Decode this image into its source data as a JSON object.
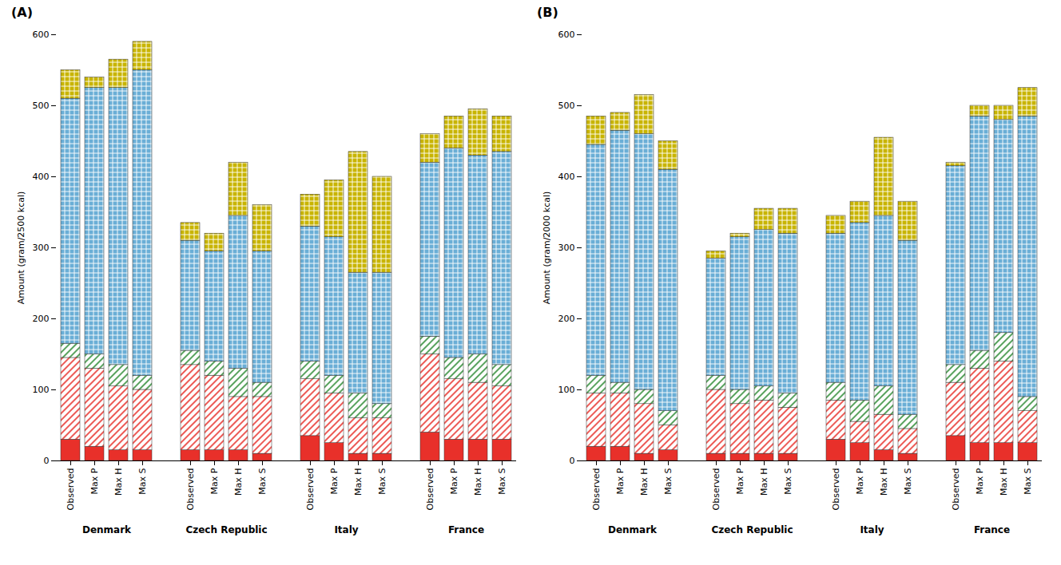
{
  "chart_data": [
    {
      "type": "bar",
      "stacked": true,
      "grid": false,
      "title": "(A)",
      "ylabel": "Amount (gram/2500 kcal)",
      "groups": [
        "Denmark",
        "Czech Republic",
        "Italy",
        "France"
      ],
      "categories": [
        "Observed",
        "Max P",
        "Max H",
        "Max S"
      ],
      "series": [
        {
          "color": "#e8302a",
          "values": [
            [
              30,
              20,
              15,
              15
            ],
            [
              15,
              15,
              15,
              10
            ],
            [
              35,
              25,
              10,
              10
            ],
            [
              40,
              30,
              30,
              30
            ]
          ]
        },
        {
          "color": "#e8302a",
          "values": [
            [
              115,
              110,
              90,
              85
            ],
            [
              120,
              105,
              75,
              80
            ],
            [
              80,
              70,
              50,
              50
            ],
            [
              110,
              85,
              80,
              75
            ]
          ]
        },
        {
          "color": "#2e8b35",
          "values": [
            [
              20,
              20,
              30,
              20
            ],
            [
              20,
              20,
              40,
              20
            ],
            [
              25,
              25,
              35,
              20
            ],
            [
              25,
              30,
              40,
              30
            ]
          ]
        },
        {
          "color": "#6aaed6",
          "values": [
            [
              345,
              375,
              390,
              430
            ],
            [
              155,
              155,
              215,
              185
            ],
            [
              190,
              195,
              170,
              185
            ],
            [
              245,
              295,
              280,
              300
            ]
          ]
        },
        {
          "color": "#c8b400",
          "values": [
            [
              40,
              15,
              40,
              40
            ],
            [
              25,
              25,
              75,
              65
            ],
            [
              45,
              80,
              170,
              135
            ],
            [
              40,
              45,
              65,
              50
            ]
          ]
        }
      ],
      "ylim": [
        0,
        600
      ],
      "yticks": [
        0,
        100,
        200,
        300,
        400,
        500,
        600
      ]
    },
    {
      "type": "bar",
      "stacked": true,
      "grid": false,
      "title": "(B)",
      "ylabel": "Amount (gram/2000 kcal)",
      "groups": [
        "Denmark",
        "Czech Republic",
        "Italy",
        "France"
      ],
      "categories": [
        "Observed",
        "Max P",
        "Max H",
        "Max S"
      ],
      "series": [
        {
          "color": "#e8302a",
          "values": [
            [
              20,
              20,
              10,
              15
            ],
            [
              10,
              10,
              10,
              10
            ],
            [
              30,
              25,
              15,
              10
            ],
            [
              35,
              25,
              25,
              25
            ]
          ]
        },
        {
          "color": "#e8302a",
          "values": [
            [
              75,
              75,
              70,
              35
            ],
            [
              90,
              70,
              75,
              65
            ],
            [
              55,
              30,
              50,
              35
            ],
            [
              75,
              105,
              115,
              45
            ]
          ]
        },
        {
          "color": "#2e8b35",
          "values": [
            [
              25,
              15,
              20,
              20
            ],
            [
              20,
              20,
              20,
              20
            ],
            [
              25,
              30,
              40,
              20
            ],
            [
              25,
              25,
              40,
              20
            ]
          ]
        },
        {
          "color": "#6aaed6",
          "values": [
            [
              325,
              355,
              360,
              340
            ],
            [
              165,
              215,
              220,
              225
            ],
            [
              210,
              250,
              240,
              245
            ],
            [
              280,
              330,
              300,
              395
            ]
          ]
        },
        {
          "color": "#c8b400",
          "values": [
            [
              40,
              25,
              55,
              40
            ],
            [
              10,
              5,
              30,
              35
            ],
            [
              25,
              30,
              110,
              55
            ],
            [
              5,
              15,
              20,
              40
            ]
          ]
        }
      ],
      "ylim": [
        0,
        600
      ],
      "yticks": [
        0,
        100,
        200,
        300,
        400,
        500,
        600
      ]
    }
  ]
}
